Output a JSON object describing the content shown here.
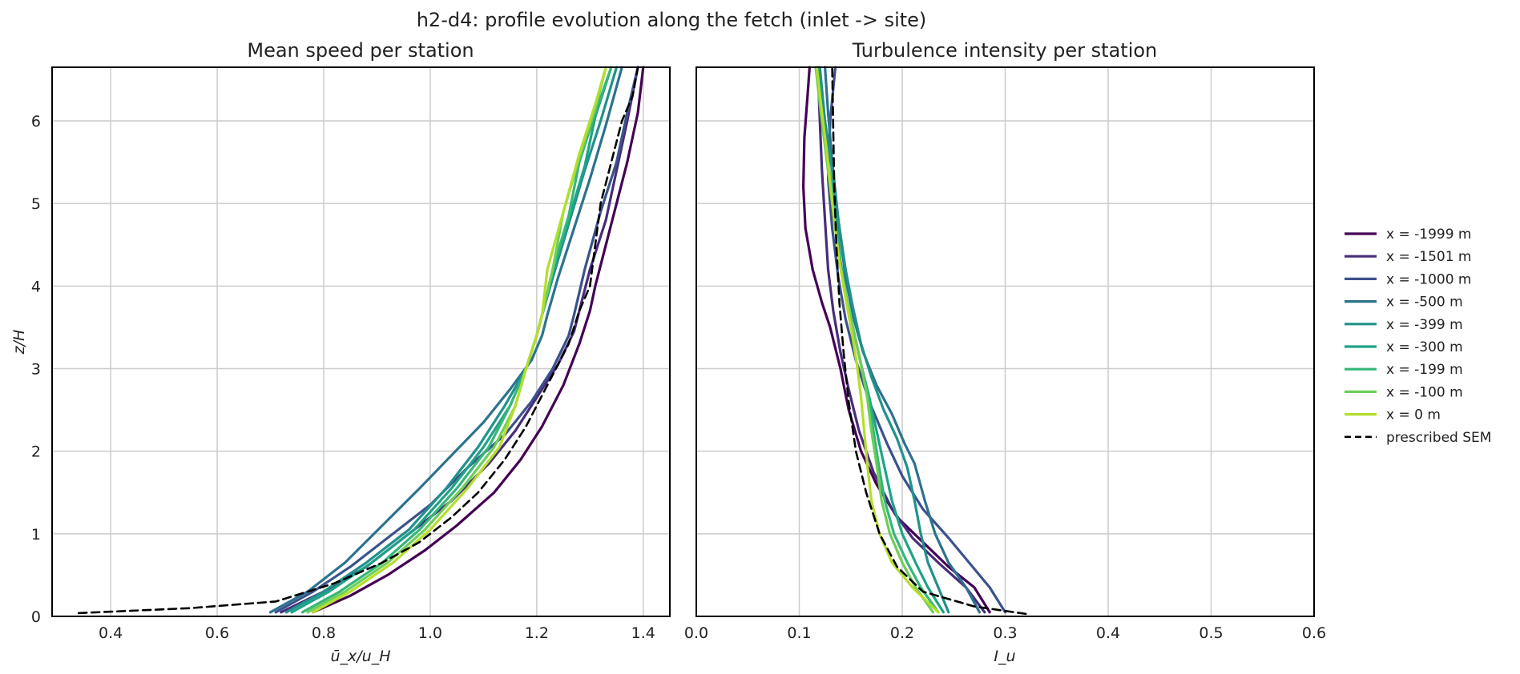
{
  "figure": {
    "suptitle": "h2-d4: profile evolution along the fetch (inlet -> site)"
  },
  "legend": {
    "placement": "right-outside",
    "entries": [
      {
        "label": "x = -1999 m",
        "color": "#440154",
        "dashed": false
      },
      {
        "label": "x = -1501 m",
        "color": "#472d7b",
        "dashed": false
      },
      {
        "label": "x = -1000 m",
        "color": "#3b528b",
        "dashed": false
      },
      {
        "label": "x = -500 m",
        "color": "#2c728e",
        "dashed": false
      },
      {
        "label": "x = -399 m",
        "color": "#21918c",
        "dashed": false
      },
      {
        "label": "x = -300 m",
        "color": "#1ea386",
        "dashed": false
      },
      {
        "label": "x = -199 m",
        "color": "#35b779",
        "dashed": false
      },
      {
        "label": "x = -100 m",
        "color": "#6ece58",
        "dashed": false
      },
      {
        "label": "x = 0 m",
        "color": "#b5de2b",
        "dashed": false
      },
      {
        "label": "prescribed SEM",
        "color": "#000000",
        "dashed": true
      }
    ]
  },
  "chart_data": [
    {
      "type": "line",
      "title": "Mean speed per station",
      "xlabel": "ū_x/u_H",
      "ylabel": "z/H",
      "xlim": [
        0.29,
        1.45
      ],
      "ylim": [
        0,
        6.65
      ],
      "xticks": [
        0.4,
        0.6,
        0.8,
        1.0,
        1.2,
        1.4
      ],
      "xtick_labels": [
        "0.4",
        "0.6",
        "0.8",
        "1.0",
        "1.2",
        "1.4"
      ],
      "yticks": [
        0,
        1,
        2,
        3,
        4,
        5,
        6
      ],
      "ytick_labels": [
        "0",
        "1",
        "2",
        "3",
        "4",
        "5",
        "6"
      ],
      "grid": true,
      "series": [
        {
          "name": "x = -1999 m",
          "color": "#440154",
          "dashed": false,
          "x": [
            0.78,
            0.85,
            0.92,
            0.99,
            1.05,
            1.12,
            1.17,
            1.21,
            1.25,
            1.28,
            1.3,
            1.31,
            1.33,
            1.35,
            1.37,
            1.39,
            1.4
          ],
          "y": [
            0.05,
            0.25,
            0.5,
            0.8,
            1.1,
            1.5,
            1.9,
            2.3,
            2.8,
            3.3,
            3.7,
            4.0,
            4.5,
            5.0,
            5.5,
            6.1,
            6.65
          ]
        },
        {
          "name": "x = -1501 m",
          "color": "#472d7b",
          "dashed": false,
          "x": [
            0.72,
            0.8,
            0.88,
            0.96,
            1.04,
            1.11,
            1.16,
            1.2,
            1.24,
            1.27,
            1.28,
            1.3,
            1.33,
            1.35,
            1.37,
            1.39
          ],
          "y": [
            0.05,
            0.3,
            0.6,
            1.0,
            1.4,
            1.85,
            2.25,
            2.65,
            3.05,
            3.45,
            3.7,
            4.2,
            4.8,
            5.4,
            6.0,
            6.65
          ]
        },
        {
          "name": "x = -1000 m",
          "color": "#3b528b",
          "dashed": false,
          "x": [
            0.71,
            0.78,
            0.85,
            0.92,
            1.0,
            1.07,
            1.14,
            1.19,
            1.23,
            1.26,
            1.27,
            1.29,
            1.32,
            1.35,
            1.37,
            1.39
          ],
          "y": [
            0.05,
            0.3,
            0.6,
            0.95,
            1.35,
            1.8,
            2.2,
            2.6,
            3.0,
            3.4,
            3.65,
            4.2,
            4.9,
            5.5,
            6.1,
            6.65
          ]
        },
        {
          "name": "x = -500 m",
          "color": "#2c728e",
          "dashed": false,
          "x": [
            0.7,
            0.77,
            0.84,
            0.91,
            0.98,
            1.04,
            1.1,
            1.15,
            1.19,
            1.21,
            1.22,
            1.24,
            1.27,
            1.3,
            1.33,
            1.36
          ],
          "y": [
            0.05,
            0.3,
            0.65,
            1.1,
            1.55,
            1.95,
            2.35,
            2.75,
            3.1,
            3.4,
            3.65,
            4.1,
            4.7,
            5.3,
            5.95,
            6.65
          ]
        },
        {
          "name": "x = -399 m",
          "color": "#21918c",
          "dashed": false,
          "x": [
            0.73,
            0.8,
            0.88,
            0.96,
            1.03,
            1.09,
            1.14,
            1.18,
            1.2,
            1.21,
            1.23,
            1.26,
            1.29,
            1.32,
            1.35
          ],
          "y": [
            0.05,
            0.3,
            0.65,
            1.05,
            1.55,
            2.05,
            2.55,
            3.0,
            3.4,
            3.65,
            4.1,
            4.75,
            5.4,
            6.0,
            6.65
          ]
        },
        {
          "name": "x = -300 m",
          "color": "#1ea386",
          "dashed": false,
          "x": [
            0.74,
            0.81,
            0.89,
            0.97,
            1.04,
            1.1,
            1.15,
            1.18,
            1.2,
            1.21,
            1.23,
            1.26,
            1.29,
            1.31,
            1.34
          ],
          "y": [
            0.05,
            0.3,
            0.65,
            1.05,
            1.55,
            2.05,
            2.55,
            3.0,
            3.4,
            3.65,
            4.15,
            4.8,
            5.45,
            6.05,
            6.65
          ]
        },
        {
          "name": "x = -199 m",
          "color": "#35b779",
          "dashed": false,
          "x": [
            0.76,
            0.83,
            0.91,
            0.98,
            1.05,
            1.11,
            1.15,
            1.18,
            1.2,
            1.21,
            1.23,
            1.26,
            1.28,
            1.31,
            1.34
          ],
          "y": [
            0.05,
            0.3,
            0.65,
            1.05,
            1.55,
            2.05,
            2.55,
            3.0,
            3.4,
            3.65,
            4.2,
            4.85,
            5.5,
            6.1,
            6.65
          ]
        },
        {
          "name": "x = -100 m",
          "color": "#6ece58",
          "dashed": false,
          "x": [
            0.77,
            0.84,
            0.92,
            0.99,
            1.06,
            1.12,
            1.16,
            1.18,
            1.2,
            1.21,
            1.23,
            1.25,
            1.28,
            1.31,
            1.33
          ],
          "y": [
            0.05,
            0.3,
            0.65,
            1.05,
            1.55,
            2.05,
            2.55,
            3.0,
            3.4,
            3.65,
            4.2,
            4.9,
            5.55,
            6.15,
            6.65
          ]
        },
        {
          "name": "x = 0 m",
          "color": "#b5de2b",
          "dashed": false,
          "x": [
            0.78,
            0.85,
            0.93,
            1.0,
            1.07,
            1.13,
            1.16,
            1.18,
            1.2,
            1.21,
            1.22,
            1.25,
            1.28,
            1.31,
            1.33
          ],
          "y": [
            0.05,
            0.3,
            0.65,
            1.05,
            1.55,
            2.05,
            2.55,
            3.0,
            3.4,
            3.65,
            4.2,
            4.9,
            5.6,
            6.2,
            6.65
          ]
        },
        {
          "name": "prescribed SEM",
          "color": "#000000",
          "dashed": true,
          "x": [
            0.34,
            0.55,
            0.71,
            0.82,
            0.91,
            0.98,
            1.04,
            1.09,
            1.14,
            1.18,
            1.22,
            1.26,
            1.28,
            1.3,
            1.31,
            1.32,
            1.34,
            1.36,
            1.38,
            1.39
          ],
          "y": [
            0.04,
            0.1,
            0.18,
            0.4,
            0.65,
            0.9,
            1.2,
            1.5,
            1.9,
            2.3,
            2.8,
            3.3,
            3.7,
            4.0,
            4.5,
            5.0,
            5.5,
            6.0,
            6.3,
            6.65
          ]
        }
      ]
    },
    {
      "type": "line",
      "title": "Turbulence intensity per station",
      "xlabel": "I_u",
      "ylabel": "",
      "xlim": [
        0.0,
        0.6
      ],
      "ylim": [
        0,
        6.65
      ],
      "xticks": [
        0.0,
        0.1,
        0.2,
        0.3,
        0.4,
        0.5,
        0.6
      ],
      "xtick_labels": [
        "0.0",
        "0.1",
        "0.2",
        "0.3",
        "0.4",
        "0.5",
        "0.6"
      ],
      "yticks": [
        0,
        1,
        2,
        3,
        4,
        5,
        6
      ],
      "ytick_labels": [],
      "grid": true,
      "series": [
        {
          "name": "x = -1999 m",
          "color": "#440154",
          "dashed": false,
          "x": [
            0.285,
            0.27,
            0.245,
            0.22,
            0.195,
            0.175,
            0.16,
            0.148,
            0.14,
            0.13,
            0.122,
            0.113,
            0.106,
            0.104,
            0.105,
            0.108,
            0.11
          ],
          "y": [
            0.05,
            0.35,
            0.6,
            0.9,
            1.2,
            1.6,
            2.0,
            2.5,
            3.0,
            3.5,
            3.8,
            4.2,
            4.7,
            5.2,
            5.8,
            6.3,
            6.65
          ]
        },
        {
          "name": "x = -1501 m",
          "color": "#472d7b",
          "dashed": false,
          "x": [
            0.28,
            0.262,
            0.235,
            0.21,
            0.19,
            0.172,
            0.158,
            0.148,
            0.14,
            0.133,
            0.128,
            0.125,
            0.122,
            0.12,
            0.118
          ],
          "y": [
            0.05,
            0.35,
            0.65,
            0.95,
            1.3,
            1.75,
            2.25,
            2.75,
            3.2,
            3.7,
            4.2,
            4.8,
            5.4,
            6.0,
            6.65
          ]
        },
        {
          "name": "x = -1000 m",
          "color": "#3b528b",
          "dashed": false,
          "x": [
            0.3,
            0.285,
            0.265,
            0.245,
            0.22,
            0.2,
            0.185,
            0.168,
            0.155,
            0.145,
            0.138,
            0.132,
            0.128,
            0.13,
            0.135
          ],
          "y": [
            0.05,
            0.35,
            0.65,
            0.95,
            1.3,
            1.7,
            2.1,
            2.6,
            3.1,
            3.6,
            4.1,
            4.7,
            5.3,
            6.0,
            6.65
          ]
        },
        {
          "name": "x = -500 m",
          "color": "#2c728e",
          "dashed": false,
          "x": [
            0.275,
            0.262,
            0.245,
            0.232,
            0.222,
            0.212,
            0.202,
            0.19,
            0.175,
            0.162,
            0.153,
            0.145,
            0.138,
            0.132,
            0.128,
            0.125
          ],
          "y": [
            0.05,
            0.35,
            0.65,
            1.0,
            1.4,
            1.85,
            2.1,
            2.45,
            2.8,
            3.2,
            3.6,
            4.1,
            4.8,
            5.5,
            6.1,
            6.65
          ]
        },
        {
          "name": "x = -399 m",
          "color": "#21918c",
          "dashed": false,
          "x": [
            0.245,
            0.235,
            0.225,
            0.218,
            0.212,
            0.205,
            0.195,
            0.182,
            0.17,
            0.16,
            0.152,
            0.145,
            0.138,
            0.132,
            0.125,
            0.12
          ],
          "y": [
            0.05,
            0.35,
            0.65,
            1.0,
            1.4,
            1.8,
            2.15,
            2.5,
            2.9,
            3.3,
            3.75,
            4.2,
            4.8,
            5.4,
            6.0,
            6.65
          ]
        },
        {
          "name": "x = -300 m",
          "color": "#1ea386",
          "dashed": false,
          "x": [
            0.24,
            0.225,
            0.213,
            0.2,
            0.19,
            0.182,
            0.175,
            0.168,
            0.16,
            0.153,
            0.146,
            0.14,
            0.135,
            0.128,
            0.122,
            0.118
          ],
          "y": [
            0.05,
            0.35,
            0.65,
            1.0,
            1.4,
            1.85,
            2.25,
            2.65,
            3.05,
            3.45,
            3.85,
            4.3,
            4.9,
            5.5,
            6.1,
            6.65
          ]
        },
        {
          "name": "x = -199 m",
          "color": "#35b779",
          "dashed": false,
          "x": [
            0.235,
            0.218,
            0.205,
            0.192,
            0.183,
            0.177,
            0.172,
            0.167,
            0.16,
            0.153,
            0.146,
            0.139,
            0.133,
            0.127,
            0.121,
            0.116
          ],
          "y": [
            0.05,
            0.35,
            0.65,
            1.0,
            1.4,
            1.85,
            2.25,
            2.65,
            3.05,
            3.45,
            3.85,
            4.3,
            4.9,
            5.5,
            6.1,
            6.65
          ]
        },
        {
          "name": "x = -100 m",
          "color": "#6ece58",
          "dashed": false,
          "x": [
            0.23,
            0.213,
            0.2,
            0.188,
            0.18,
            0.175,
            0.17,
            0.166,
            0.16,
            0.153,
            0.146,
            0.139,
            0.133,
            0.127,
            0.121,
            0.116
          ],
          "y": [
            0.05,
            0.35,
            0.65,
            1.0,
            1.4,
            1.85,
            2.25,
            2.65,
            3.05,
            3.45,
            3.85,
            4.3,
            4.9,
            5.5,
            6.1,
            6.65
          ]
        },
        {
          "name": "x = 0 m",
          "color": "#b5de2b",
          "dashed": false,
          "x": [
            0.235,
            0.21,
            0.19,
            0.178,
            0.17,
            0.166,
            0.163,
            0.16,
            0.156,
            0.151,
            0.145,
            0.139,
            0.133,
            0.128,
            0.122,
            0.117
          ],
          "y": [
            0.05,
            0.35,
            0.65,
            1.0,
            1.4,
            1.85,
            2.25,
            2.65,
            3.05,
            3.45,
            3.85,
            4.3,
            4.9,
            5.5,
            6.1,
            6.65
          ]
        },
        {
          "name": "prescribed SEM",
          "color": "#000000",
          "dashed": true,
          "x": [
            0.32,
            0.27,
            0.22,
            0.195,
            0.178,
            0.165,
            0.155,
            0.148,
            0.143,
            0.139,
            0.136,
            0.134,
            0.133,
            0.132
          ],
          "y": [
            0.03,
            0.12,
            0.3,
            0.6,
            1.0,
            1.5,
            2.0,
            2.6,
            3.2,
            3.8,
            4.5,
            5.2,
            5.9,
            6.65
          ]
        }
      ]
    }
  ]
}
